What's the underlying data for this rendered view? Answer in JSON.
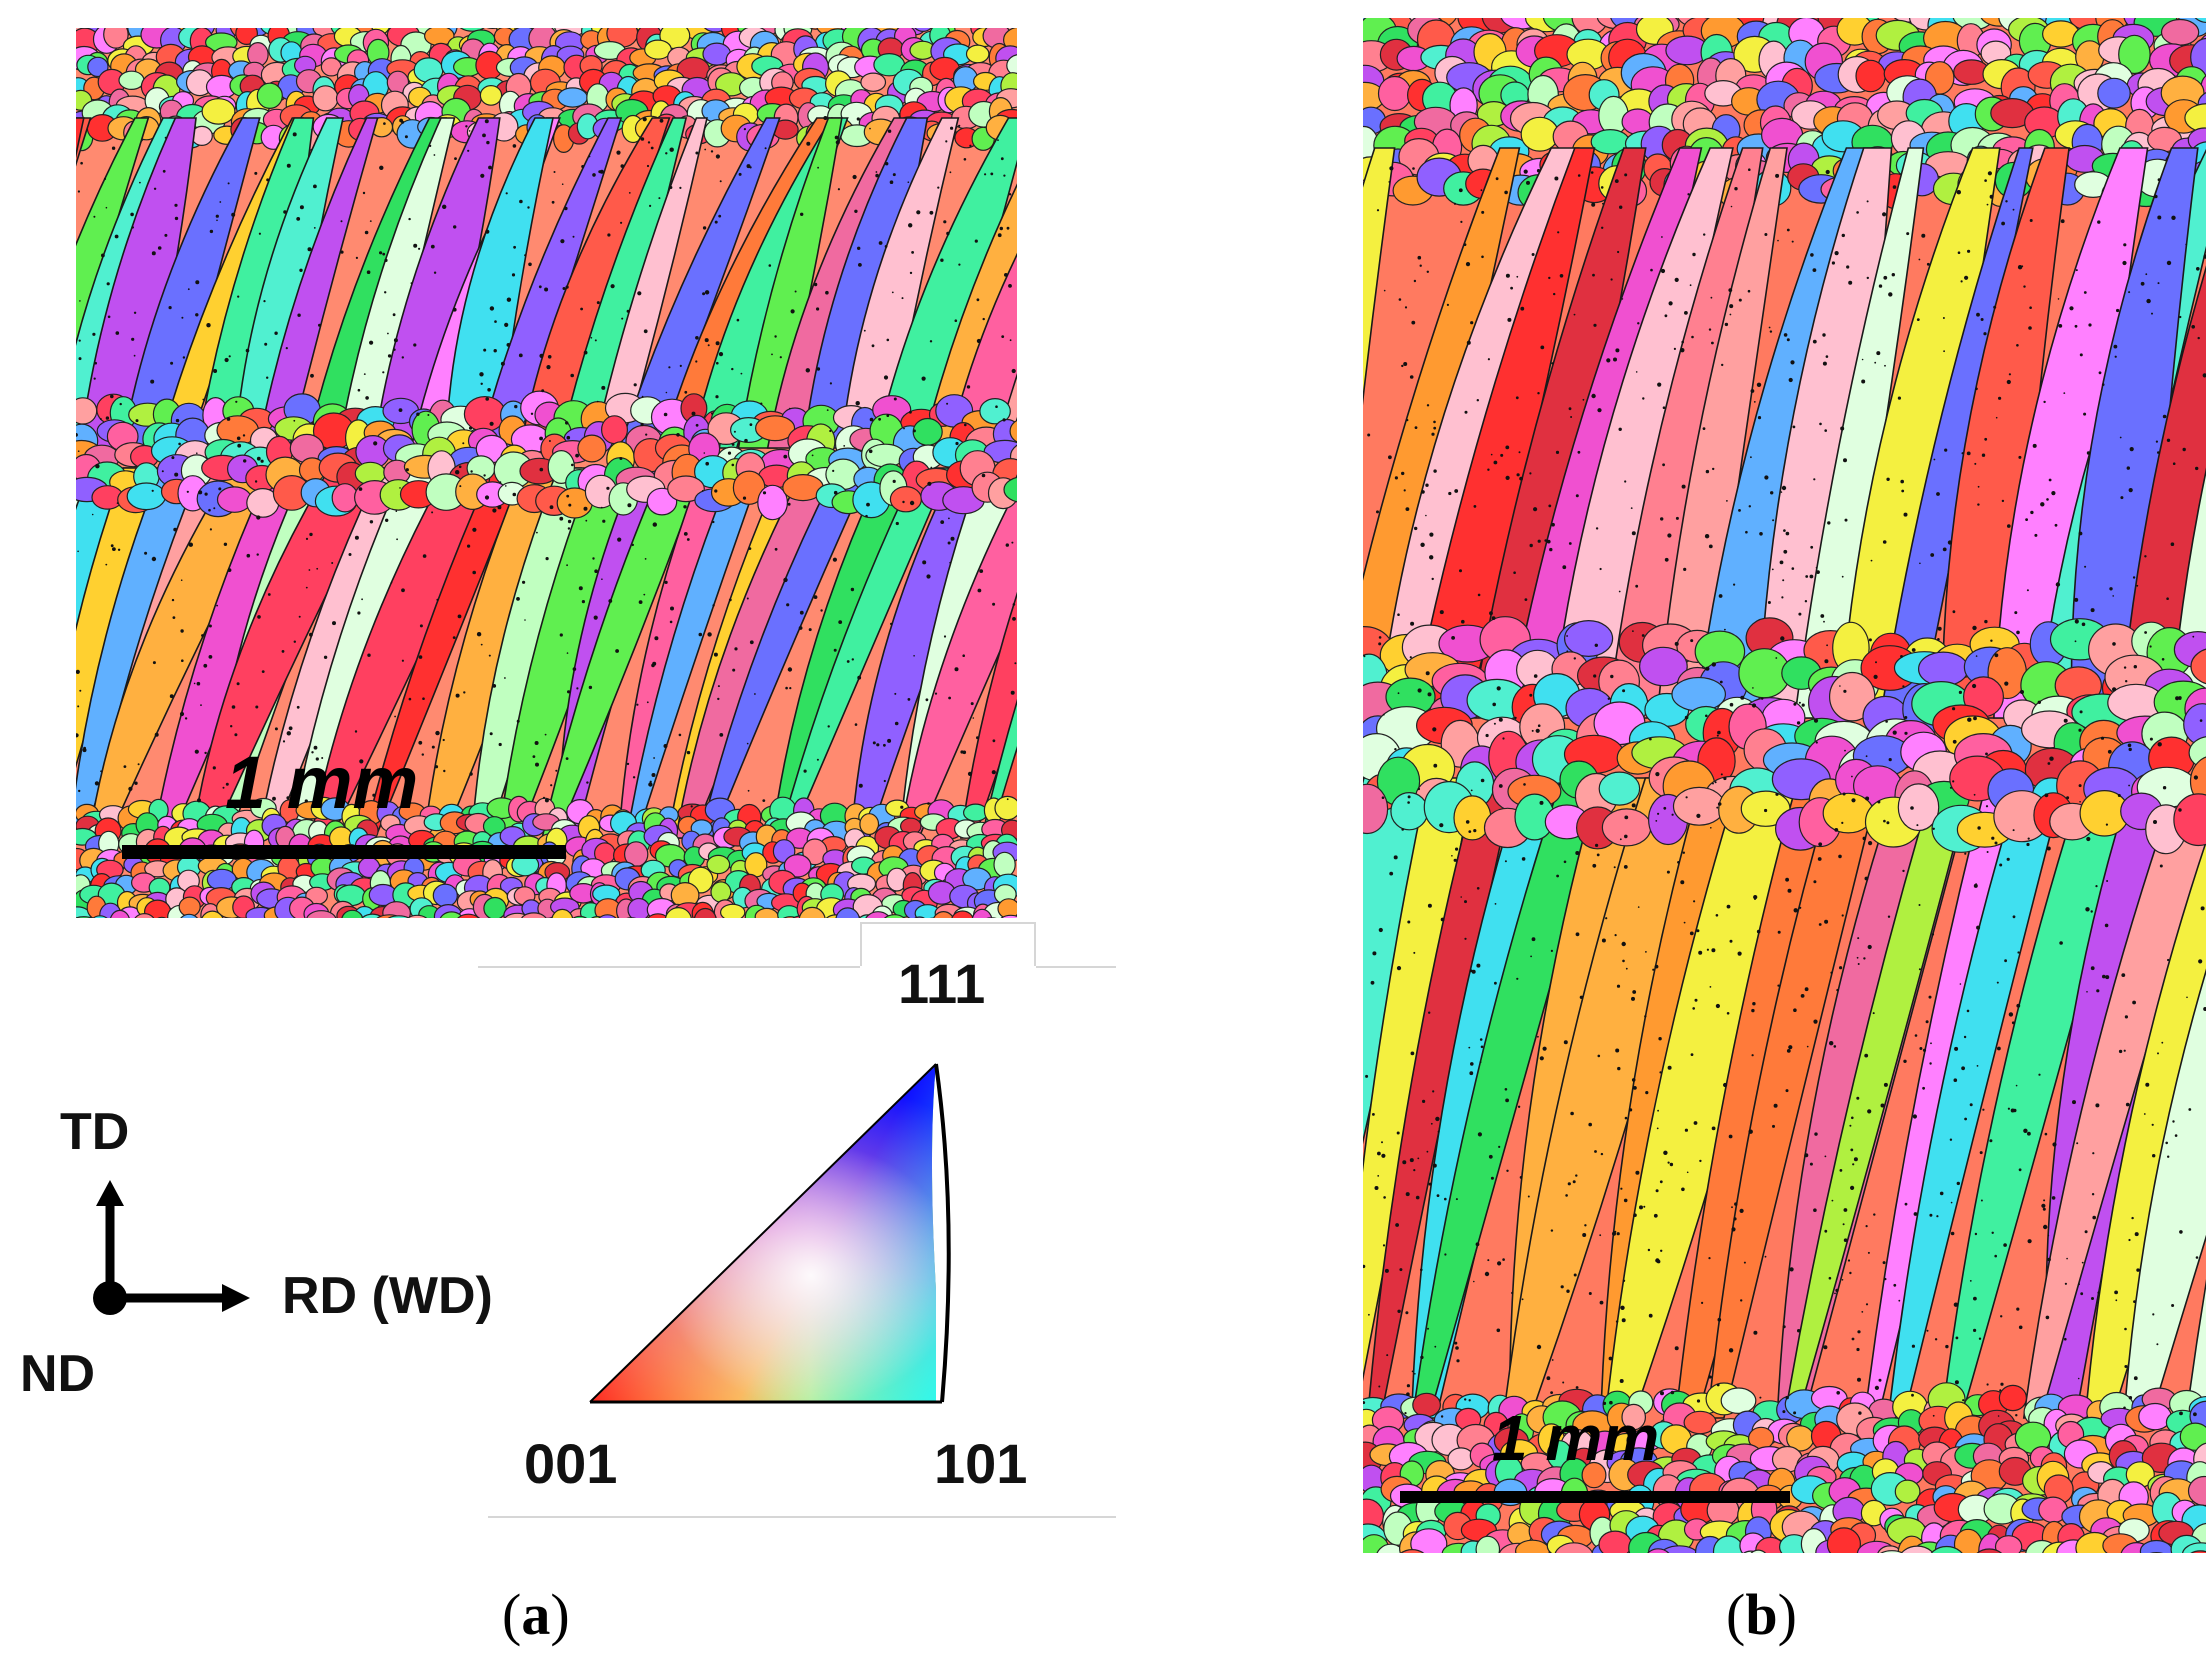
{
  "panel_a": {
    "scale_bar_label": "1 mm",
    "caption_letter": "a"
  },
  "panel_b": {
    "scale_bar_label": "1 mm",
    "caption_letter": "b"
  },
  "axes": {
    "td": "TD",
    "rd": "RD (WD)",
    "nd": "ND"
  },
  "ipf_key": {
    "top": "111",
    "bottom_left": "001",
    "bottom_right": "101"
  },
  "colors": {
    "ipf_001": "#ff0000",
    "ipf_101": "#00ff00",
    "ipf_111": "#0000ff"
  }
}
